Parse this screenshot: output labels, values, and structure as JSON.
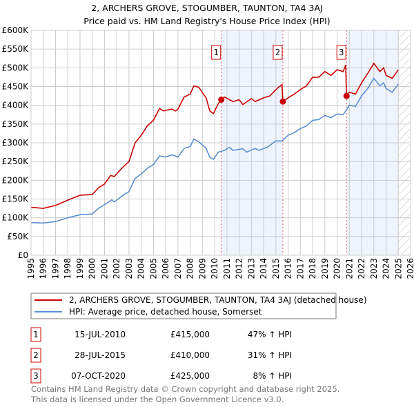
{
  "chart_data": {
    "type": "line",
    "title": "2, ARCHERS GROVE, STOGUMBER, TAUNTON, TA4 3AJ",
    "subtitle": "Price paid vs. HM Land Registry's House Price Index (HPI)",
    "xlim": [
      1995,
      2026
    ],
    "ylim": [
      0,
      600000
    ],
    "x_ticks": [
      "1995",
      "1996",
      "1997",
      "1998",
      "1999",
      "2000",
      "2001",
      "2002",
      "2003",
      "2004",
      "2005",
      "2006",
      "2007",
      "2008",
      "2009",
      "2010",
      "2011",
      "2012",
      "2013",
      "2014",
      "2015",
      "2016",
      "2017",
      "2018",
      "2019",
      "2020",
      "2021",
      "2022",
      "2023",
      "2024",
      "2025",
      "2026"
    ],
    "y_ticks": [
      {
        "v": 0,
        "l": "£0"
      },
      {
        "v": 50000,
        "l": "£50K"
      },
      {
        "v": 100000,
        "l": "£100K"
      },
      {
        "v": 150000,
        "l": "£150K"
      },
      {
        "v": 200000,
        "l": "£200K"
      },
      {
        "v": 250000,
        "l": "£250K"
      },
      {
        "v": 300000,
        "l": "£300K"
      },
      {
        "v": 350000,
        "l": "£350K"
      },
      {
        "v": 400000,
        "l": "£400K"
      },
      {
        "v": 450000,
        "l": "£450K"
      },
      {
        "v": 500000,
        "l": "£500K"
      },
      {
        "v": 550000,
        "l": "£550K"
      },
      {
        "v": 600000,
        "l": "£600K"
      }
    ],
    "grid": true,
    "shaded_periods": [
      [
        2010.54,
        2015.57
      ],
      [
        2020.77,
        2025.0
      ]
    ],
    "forecast_hatch_from": 2025.0,
    "series": [
      {
        "name": "2, ARCHERS GROVE, STOGUMBER, TAUNTON, TA4 3AJ (detached house)",
        "color": "#cc0000",
        "x": [
          1995,
          1996,
          1997,
          1998,
          1999,
          2000,
          2000.5,
          2001,
          2001.5,
          2001.8,
          2002.5,
          2003,
          2003.5,
          2004,
          2004.5,
          2005,
          2005.5,
          2005.8,
          2006.5,
          2006.8,
          2007,
          2007.5,
          2008,
          2008.3,
          2008.7,
          2009.3,
          2009.6,
          2009.9,
          2010.3,
          2010.54,
          2010.8,
          2011.5,
          2012,
          2012.3,
          2013,
          2013.3,
          2014,
          2014.5,
          2015.2,
          2015.5,
          2015.57,
          2016,
          2016.5,
          2017,
          2017.5,
          2018,
          2018.5,
          2019,
          2019.5,
          2020,
          2020.5,
          2020.7,
          2020.77,
          2021,
          2021.5,
          2022,
          2022.5,
          2023,
          2023.5,
          2023.8,
          2024,
          2024.5,
          2025
        ],
        "y": [
          128000,
          125000,
          133000,
          147000,
          160000,
          162000,
          180000,
          190000,
          213000,
          210000,
          235000,
          250000,
          300000,
          320000,
          345000,
          360000,
          392000,
          385000,
          390000,
          385000,
          390000,
          422000,
          430000,
          452000,
          448000,
          420000,
          385000,
          378000,
          405000,
          415000,
          422000,
          410000,
          415000,
          402000,
          418000,
          410000,
          420000,
          425000,
          448000,
          455000,
          410000,
          420000,
          430000,
          442000,
          452000,
          475000,
          475000,
          490000,
          480000,
          495000,
          490000,
          508000,
          425000,
          435000,
          430000,
          460000,
          485000,
          512000,
          490000,
          500000,
          480000,
          472000,
          495000
        ]
      },
      {
        "name": "HPI: Average price, detached house, Somerset",
        "color": "#5b8fd4",
        "x": [
          1995,
          1996,
          1997,
          1998,
          1999,
          2000,
          2000.5,
          2001,
          2001.6,
          2001.8,
          2002.5,
          2003,
          2003.5,
          2004,
          2004.5,
          2005,
          2005.5,
          2006,
          2006.5,
          2007,
          2007.5,
          2008,
          2008.3,
          2008.7,
          2009.3,
          2009.6,
          2009.9,
          2010.3,
          2010.8,
          2011.2,
          2011.5,
          2012.3,
          2012.6,
          2013.3,
          2013.6,
          2014.3,
          2015,
          2015.5,
          2016,
          2016.5,
          2017,
          2017.5,
          2018,
          2018.5,
          2019,
          2019.5,
          2020,
          2020.5,
          2021,
          2021.5,
          2022,
          2022.5,
          2023,
          2023.5,
          2023.8,
          2024,
          2024.5,
          2025
        ],
        "y": [
          87000,
          86000,
          90000,
          100000,
          108000,
          110000,
          125000,
          135000,
          148000,
          142000,
          160000,
          170000,
          205000,
          217000,
          232000,
          242000,
          265000,
          262000,
          268000,
          262000,
          285000,
          290000,
          310000,
          303000,
          285000,
          262000,
          256000,
          275000,
          280000,
          288000,
          280000,
          284000,
          275000,
          285000,
          280000,
          288000,
          305000,
          305000,
          320000,
          327000,
          338000,
          345000,
          360000,
          362000,
          373000,
          367000,
          377000,
          375000,
          400000,
          397000,
          425000,
          445000,
          472000,
          452000,
          460000,
          445000,
          435000,
          457000
        ]
      }
    ],
    "sales": [
      {
        "label": "1",
        "x": 2010.54,
        "price": 415000,
        "date": "15-JUL-2010",
        "price_text": "£415,000",
        "hpi_text": "47% ↑ HPI"
      },
      {
        "label": "2",
        "x": 2015.57,
        "price": 410000,
        "date": "28-JUL-2015",
        "price_text": "£410,000",
        "hpi_text": "31% ↑ HPI"
      },
      {
        "label": "3",
        "x": 2020.77,
        "price": 425000,
        "date": "07-OCT-2020",
        "price_text": "£425,000",
        "hpi_text": "8% ↑ HPI"
      }
    ]
  },
  "footer": [
    "Contains HM Land Registry data © Crown copyright and database right 2025.",
    "This data is licensed under the Open Government Licence v3.0."
  ]
}
